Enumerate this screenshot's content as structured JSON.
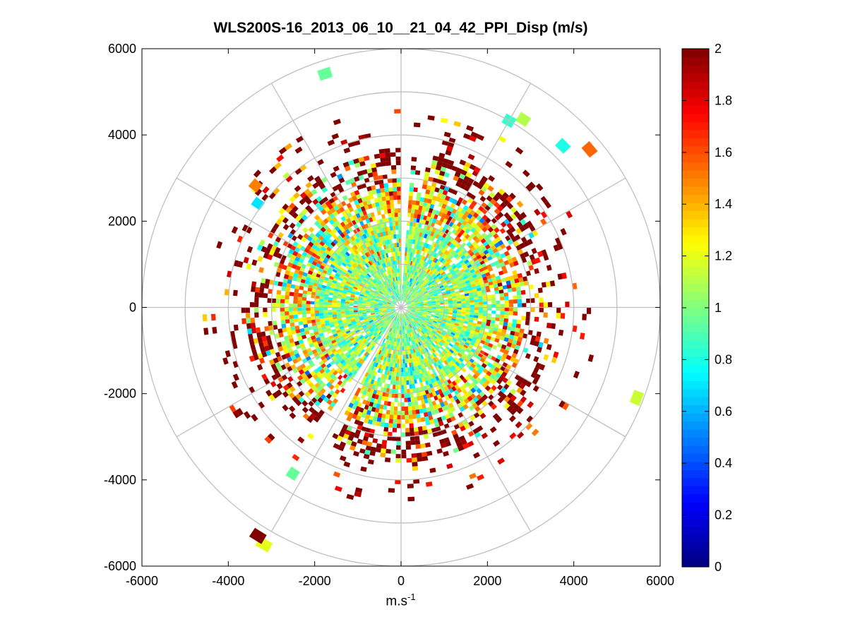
{
  "chart_data": {
    "type": "heatmap",
    "subtype": "polar-ppi",
    "title": "WLS200S-16_2013_06_10__21_04_42_PPI_Disp (m/s)",
    "xlabel_base": "m.s",
    "xlabel_exp": "-1",
    "xlim": [
      -6000,
      6000
    ],
    "ylim": [
      -6000,
      6000
    ],
    "xticks": [
      -6000,
      -4000,
      -2000,
      0,
      2000,
      4000,
      6000
    ],
    "yticks": [
      6000,
      4000,
      2000,
      0,
      -2000,
      -4000,
      -6000
    ],
    "xtick_labels": [
      "-6000",
      "-4000",
      "-2000",
      "0",
      "2000",
      "4000",
      "6000"
    ],
    "ytick_labels": [
      "6000",
      "4000",
      "2000",
      "0",
      "-2000",
      "-4000",
      "-6000"
    ],
    "range_rings_m": [
      1000,
      2000,
      3000,
      4000,
      5000,
      6000
    ],
    "spoke_angles_deg": [
      0,
      30,
      60,
      90,
      120,
      150,
      180,
      210,
      240,
      270,
      300,
      330
    ],
    "colormap": "jet",
    "colorbar": {
      "min": 0,
      "max": 2,
      "ticks": [
        0,
        0.2,
        0.4,
        0.6,
        0.8,
        1,
        1.2,
        1.4,
        1.6,
        1.8,
        2
      ],
      "tick_labels": [
        "0",
        "0.2",
        "0.4",
        "0.6",
        "0.8",
        "1",
        "1.2",
        "1.4",
        "1.6",
        "1.8",
        "2"
      ]
    },
    "field": {
      "gap_sectors_deg": [
        [
          85,
          90
        ],
        [
          236,
          242
        ]
      ],
      "rings": [
        {
          "r_inner": 150,
          "r_outer": 1000,
          "mean": 1.0,
          "spread": 0.18,
          "coverage": 0.97
        },
        {
          "r_inner": 1000,
          "r_outer": 2000,
          "mean": 1.05,
          "spread": 0.22,
          "coverage": 0.93
        },
        {
          "r_inner": 2000,
          "r_outer": 2800,
          "mean": 1.25,
          "spread": 0.35,
          "coverage": 0.8
        },
        {
          "r_inner": 2800,
          "r_outer": 3600,
          "mean": 1.55,
          "spread": 0.45,
          "coverage": 0.5
        },
        {
          "r_inner": 3600,
          "r_outer": 4600,
          "mean": 1.8,
          "spread": 0.35,
          "coverage": 0.1
        }
      ],
      "outliers": [
        {
          "angle_deg": 108,
          "range_m": 5700,
          "value": 0.95
        },
        {
          "angle_deg": 60,
          "range_m": 5000,
          "value": 0.85
        },
        {
          "angle_deg": 57,
          "range_m": 5200,
          "value": 1.1
        },
        {
          "angle_deg": 45,
          "range_m": 5300,
          "value": 0.8
        },
        {
          "angle_deg": 40,
          "range_m": 5700,
          "value": 1.55
        },
        {
          "angle_deg": 140,
          "range_m": 4400,
          "value": 1.5
        },
        {
          "angle_deg": 144,
          "range_m": 4100,
          "value": 0.7
        },
        {
          "angle_deg": 240,
          "range_m": 6350,
          "value": 1.2
        },
        {
          "angle_deg": 238,
          "range_m": 6250,
          "value": 2.0
        },
        {
          "angle_deg": 339,
          "range_m": 5850,
          "value": 1.15
        },
        {
          "angle_deg": 237,
          "range_m": 4600,
          "value": 0.95
        }
      ]
    }
  }
}
